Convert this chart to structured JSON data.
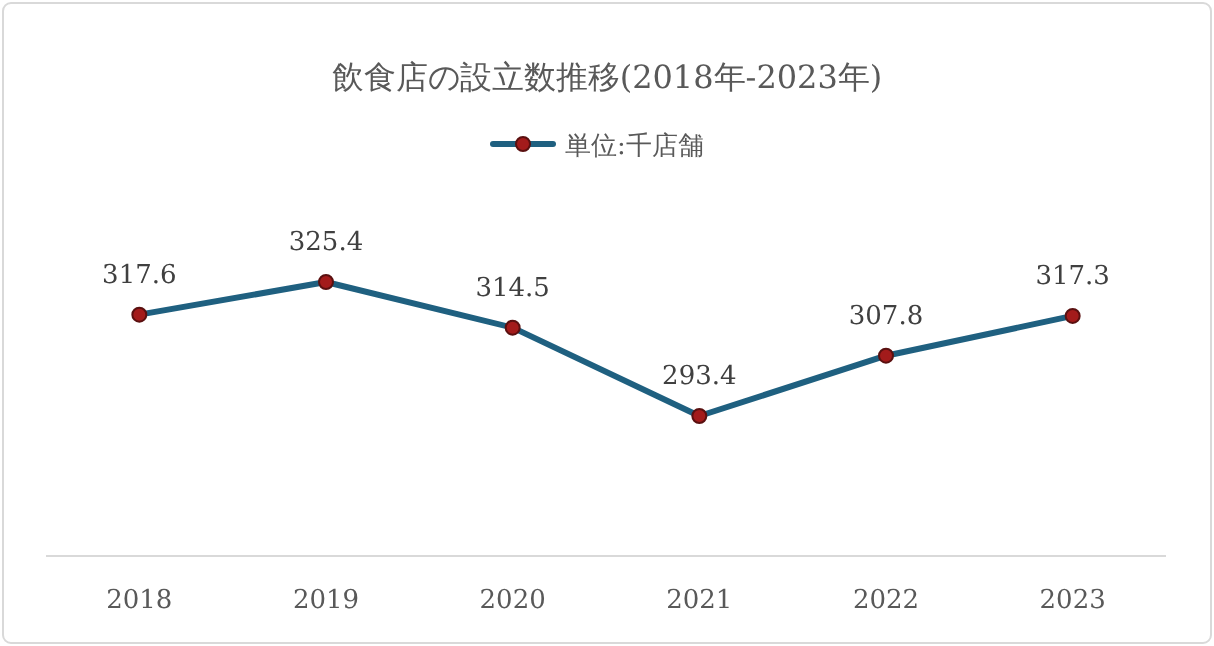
{
  "chart_data": {
    "type": "line",
    "title": "飲食店の設立数推移(2018年-2023年)",
    "categories": [
      "2018",
      "2019",
      "2020",
      "2021",
      "2022",
      "2023"
    ],
    "series": [
      {
        "name": "単位:千店舗",
        "color": "#1f6080",
        "values": [
          317.6,
          325.4,
          314.5,
          293.4,
          307.8,
          317.3
        ]
      }
    ],
    "data_labels": true,
    "marker": "circle",
    "legend": "top",
    "tick_labels": "x"
  }
}
